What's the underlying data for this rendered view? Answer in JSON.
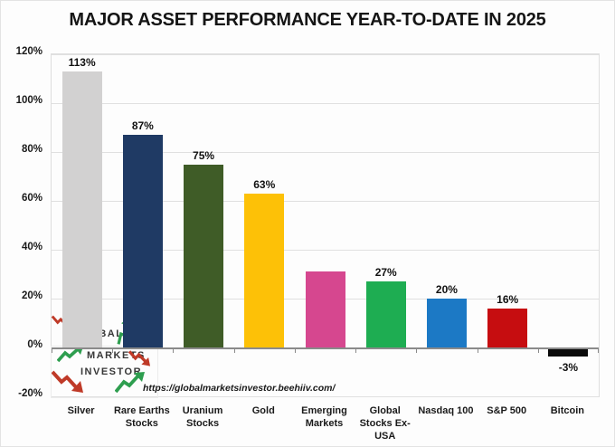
{
  "title": "MAJOR ASSET PERFORMANCE YEAR-TO-DATE IN 2025",
  "source_url": "https://globalmarketsinvestor.beehiiv.com/",
  "watermark": {
    "word1": "GLOBAL",
    "word2": "MARKETS",
    "word3": "INVESTOR",
    "arrow_up_color": "#2e9e4f",
    "arrow_down_color": "#bf3a28"
  },
  "chart_data": {
    "type": "bar",
    "title": "MAJOR ASSET PERFORMANCE YEAR-TO-DATE IN 2025",
    "categories": [
      "Silver",
      "Rare Earths\nStocks",
      "Uranium\nStocks",
      "Gold",
      "Emerging\nMarkets",
      "Global\nStocks Ex-\nUSA",
      "Nasdaq 100",
      "S&P 500",
      "Bitcoin"
    ],
    "values": [
      113,
      87,
      75,
      63,
      31,
      27,
      20,
      16,
      -3
    ],
    "value_labels": [
      "113%",
      "87%",
      "75%",
      "63%",
      "",
      "27%",
      "20%",
      "16%",
      "-3%"
    ],
    "bar_colors": [
      "#d2d1d1",
      "#1f3a64",
      "#3f5c27",
      "#fdc107",
      "#d6478f",
      "#1ead52",
      "#1c79c5",
      "#c60d10",
      "#0a0a0a"
    ],
    "y_ticks": [
      120,
      100,
      80,
      60,
      40,
      20,
      0,
      -20
    ],
    "y_tick_labels": [
      "120%",
      "100%",
      "80%",
      "60%",
      "40%",
      "20%",
      "0%",
      "-20%"
    ],
    "ylim": [
      -20,
      120
    ],
    "grid": true,
    "legend": false,
    "gridline_color": "#e0e0e0",
    "axis_color": "#8a8a8a"
  }
}
